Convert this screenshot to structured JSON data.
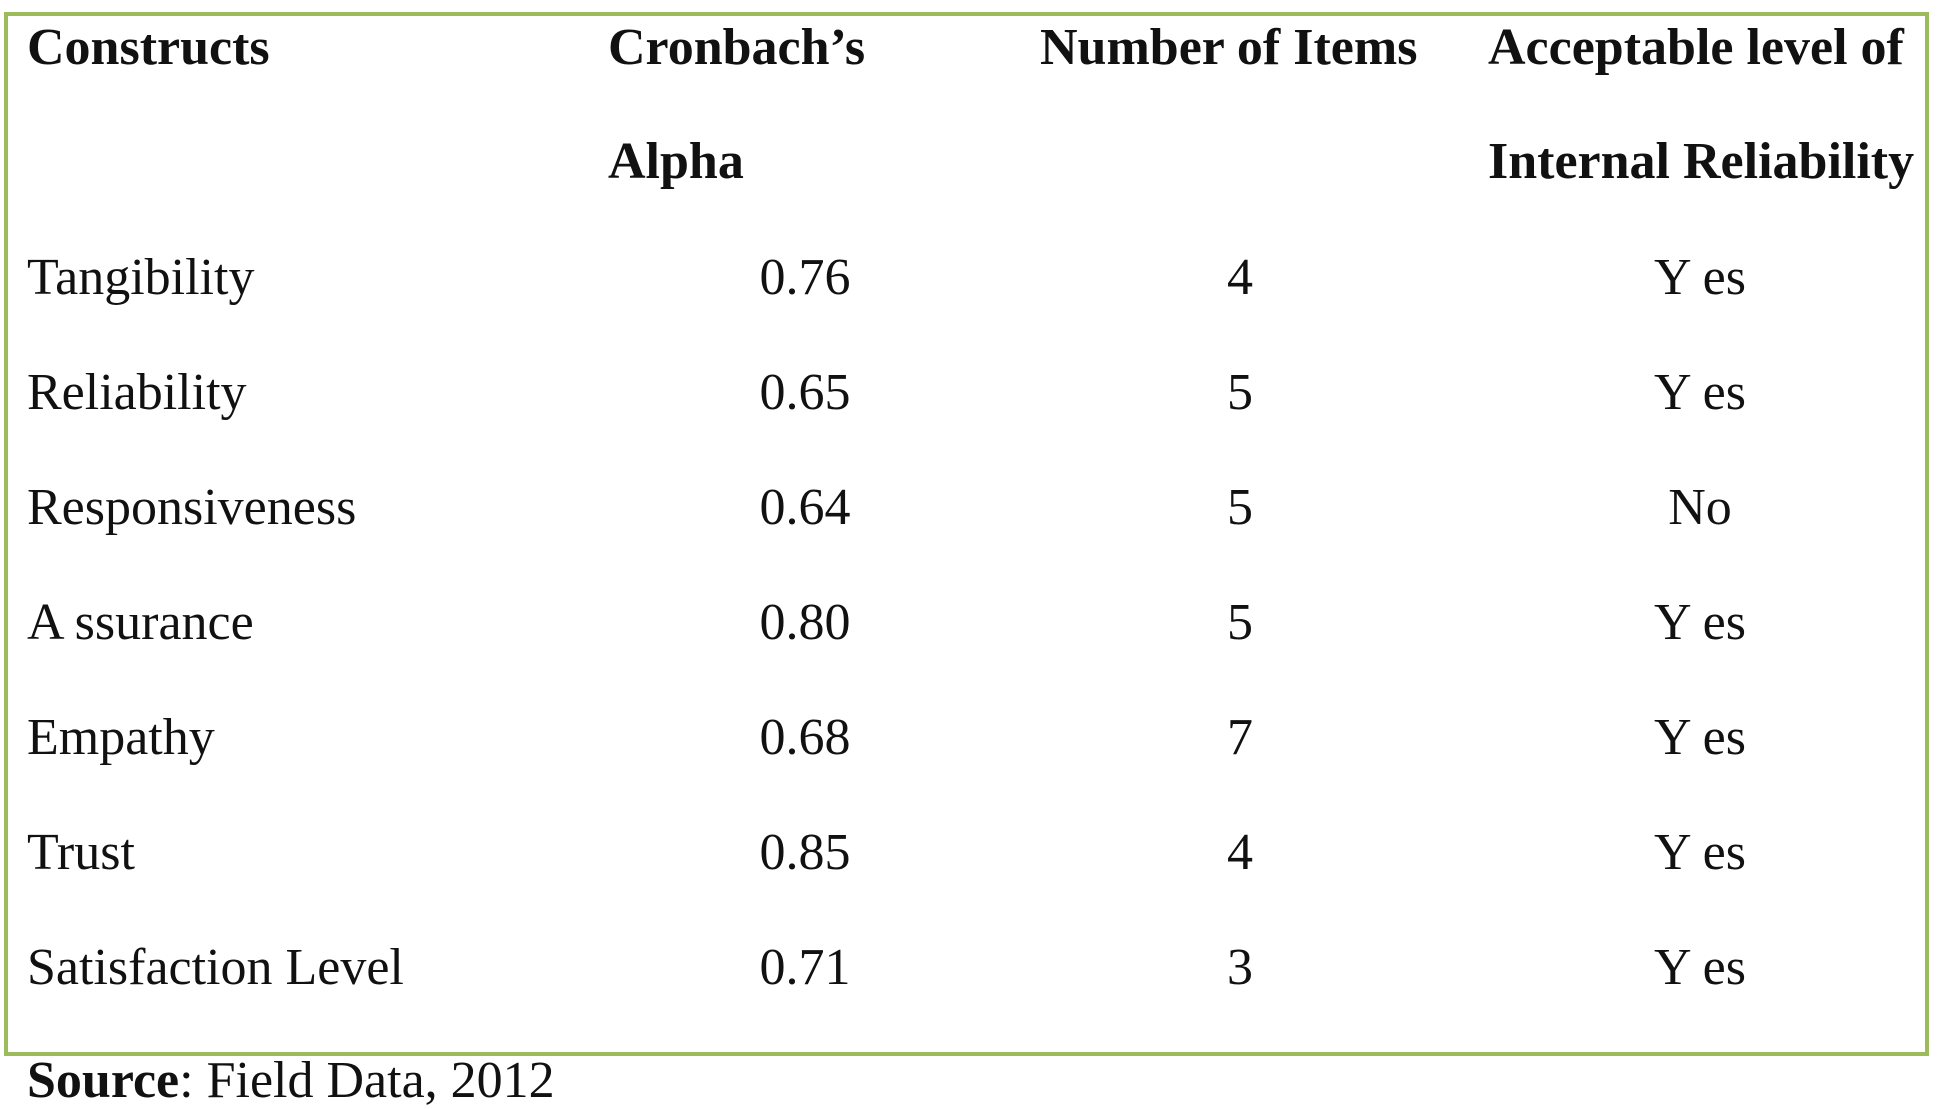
{
  "table": {
    "headers": {
      "constructs": "Constructs",
      "alpha_line1": "Cronbach’s",
      "alpha_line2": "Alpha",
      "items": "Number of Items",
      "accept_line1": "Acceptable  level  of",
      "accept_line2": "Internal Reliability"
    },
    "rows": [
      {
        "construct": "Tangibility",
        "alpha": "0.76",
        "items": "4",
        "acceptable": "Y es"
      },
      {
        "construct": "Reliability",
        "alpha": "0.65",
        "items": "5",
        "acceptable": "Y es"
      },
      {
        "construct": "Responsiveness",
        "alpha": "0.64",
        "items": "5",
        "acceptable": "No"
      },
      {
        "construct": "A ssurance",
        "alpha": "0.80",
        "items": "5",
        "acceptable": "Y es"
      },
      {
        "construct": "Empathy",
        "alpha": "0.68",
        "items": "7",
        "acceptable": "Y es"
      },
      {
        "construct": "Trust",
        "alpha": "0.85",
        "items": "4",
        "acceptable": "Y es"
      },
      {
        "construct": "Satisfaction Level",
        "alpha": "0.71",
        "items": "3",
        "acceptable": "Y es"
      }
    ]
  },
  "source": {
    "label": "Source",
    "text": ": Field Data, 2012"
  },
  "colors": {
    "border": "#9cbb5a",
    "text": "#111111"
  }
}
